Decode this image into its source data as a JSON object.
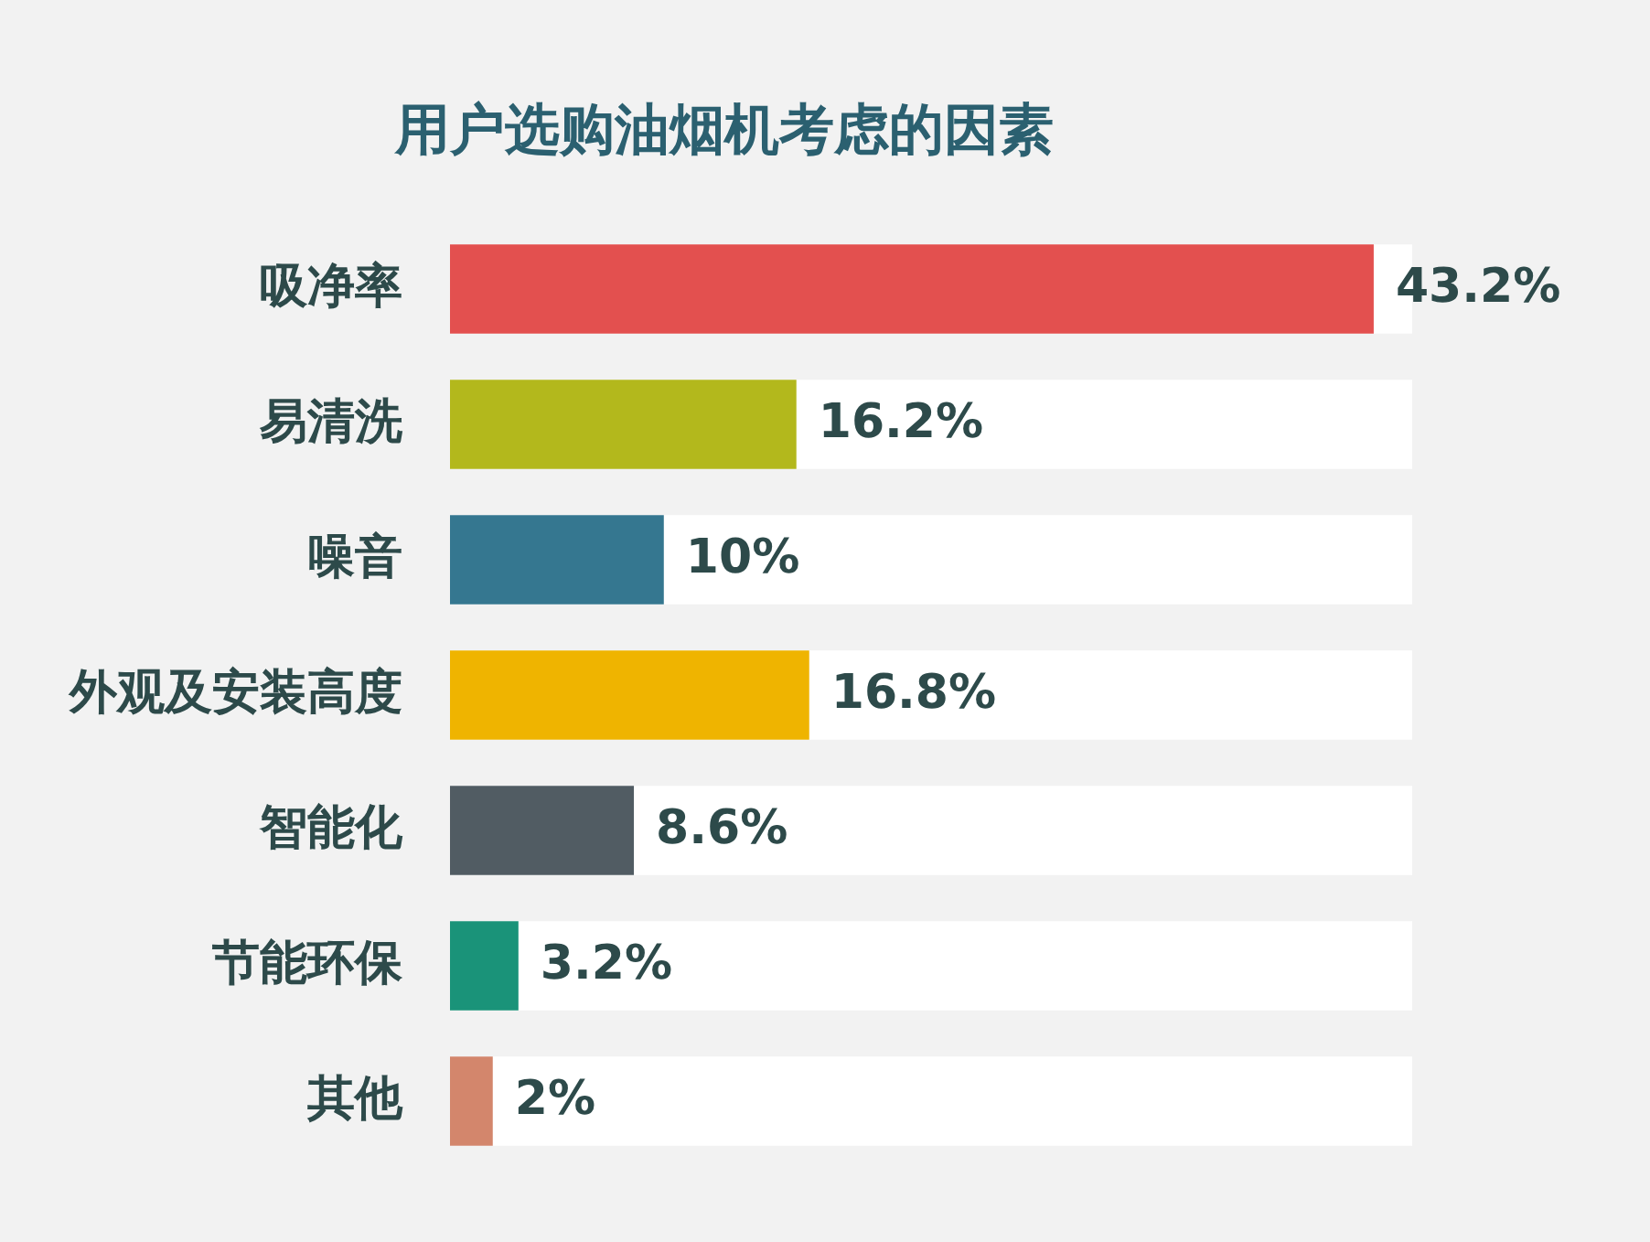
{
  "chart_data": {
    "type": "bar",
    "orientation": "horizontal",
    "title": "用户选购油烟机考虑的因素",
    "categories": [
      "吸净率",
      "易清洗",
      "噪音",
      "外观及安装高度",
      "智能化",
      "节能环保",
      "其他"
    ],
    "values": [
      43.2,
      16.2,
      10,
      16.8,
      8.6,
      3.2,
      2
    ],
    "colors": [
      "#e3504f",
      "#b3b81c",
      "#357790",
      "#efb400",
      "#515c63",
      "#1a9379",
      "#d3866c"
    ],
    "value_labels": [
      "43.2%",
      "16.2%",
      "10%",
      "16.8%",
      "8.6%",
      "3.2%",
      "2%"
    ],
    "tick_labels": "y"
  }
}
